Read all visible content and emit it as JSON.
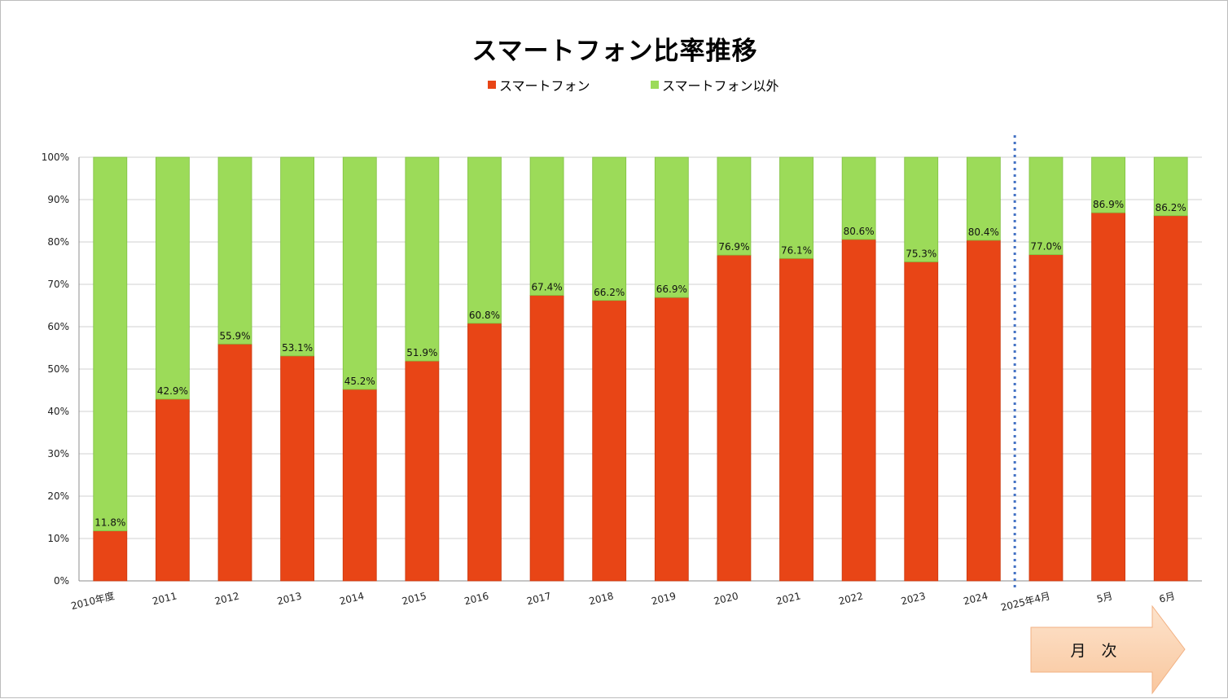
{
  "chart_data": {
    "type": "bar",
    "stacked": true,
    "title": "スマートフォン比率推移",
    "categories": [
      "2010年度",
      "2011",
      "2012",
      "2013",
      "2014",
      "2015",
      "2016",
      "2017",
      "2018",
      "2019",
      "2020",
      "2021",
      "2022",
      "2023",
      "2024",
      "2025年4月",
      "5月",
      "6月"
    ],
    "series": [
      {
        "name": "スマートフォン",
        "color": "#E84516",
        "values": [
          11.8,
          42.9,
          55.9,
          53.1,
          45.2,
          51.9,
          60.8,
          67.4,
          66.2,
          66.9,
          76.9,
          76.1,
          80.6,
          75.3,
          80.4,
          77.0,
          86.9,
          86.2
        ]
      },
      {
        "name": "スマートフォン以外",
        "color": "#9CDB59",
        "values": [
          88.2,
          57.1,
          44.1,
          46.9,
          54.8,
          48.1,
          39.2,
          32.6,
          33.8,
          33.1,
          23.1,
          23.9,
          19.4,
          24.7,
          19.6,
          23.0,
          13.1,
          13.8
        ]
      }
    ],
    "data_labels": [
      "11.8%",
      "42.9%",
      "55.9%",
      "53.1%",
      "45.2%",
      "51.9%",
      "60.8%",
      "67.4%",
      "66.2%",
      "66.9%",
      "76.9%",
      "76.1%",
      "80.6%",
      "75.3%",
      "80.4%",
      "77.0%",
      "86.9%",
      "86.2%"
    ],
    "y_ticks": [
      "0%",
      "10%",
      "20%",
      "30%",
      "40%",
      "50%",
      "60%",
      "70%",
      "80%",
      "90%",
      "100%"
    ],
    "ylim": [
      0,
      100
    ],
    "grid": true,
    "legend_position": "top",
    "divider": {
      "style": "dotted",
      "color": "#4472C4",
      "between": [
        "2024",
        "2025年4月"
      ]
    },
    "callout": {
      "label": "月　次",
      "shape": "right-arrow",
      "color": "#FCD5B4"
    }
  }
}
